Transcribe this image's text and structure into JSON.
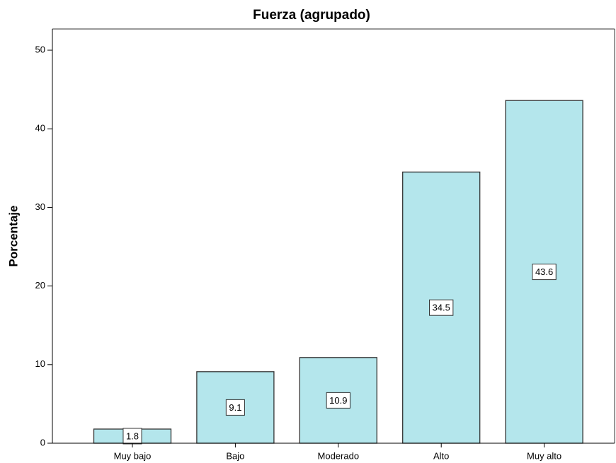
{
  "chart_data": {
    "type": "bar",
    "title": "Fuerza (agrupado)",
    "y_label": "Porcentaje",
    "categories": [
      "Muy bajo",
      "Bajo",
      "Moderado",
      "Alto",
      "Muy alto"
    ],
    "values": [
      1.8,
      9.1,
      10.9,
      34.5,
      43.6
    ],
    "color": "#b4e6ec",
    "ylim": [
      0,
      52.7
    ],
    "yticks": [
      0,
      10,
      20,
      30,
      40,
      50
    ],
    "grid": false
  }
}
